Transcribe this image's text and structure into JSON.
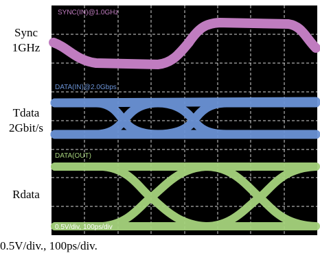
{
  "labels": [
    {
      "name": "Sync",
      "rate": "1GHz"
    },
    {
      "name": "Tdata",
      "rate": "2Gbit/s"
    },
    {
      "name": "Rdata",
      "rate": ""
    }
  ],
  "screen": {
    "sync_label": "SYNC(IN)@1.0GHz",
    "tdata_label": "DATA(IN)@2.0Gbps",
    "rdata_label": "DATA(OUT)",
    "scale": "0.5V/div, 100ps/div"
  },
  "caption": "0.5V/div., 100ps/div."
}
